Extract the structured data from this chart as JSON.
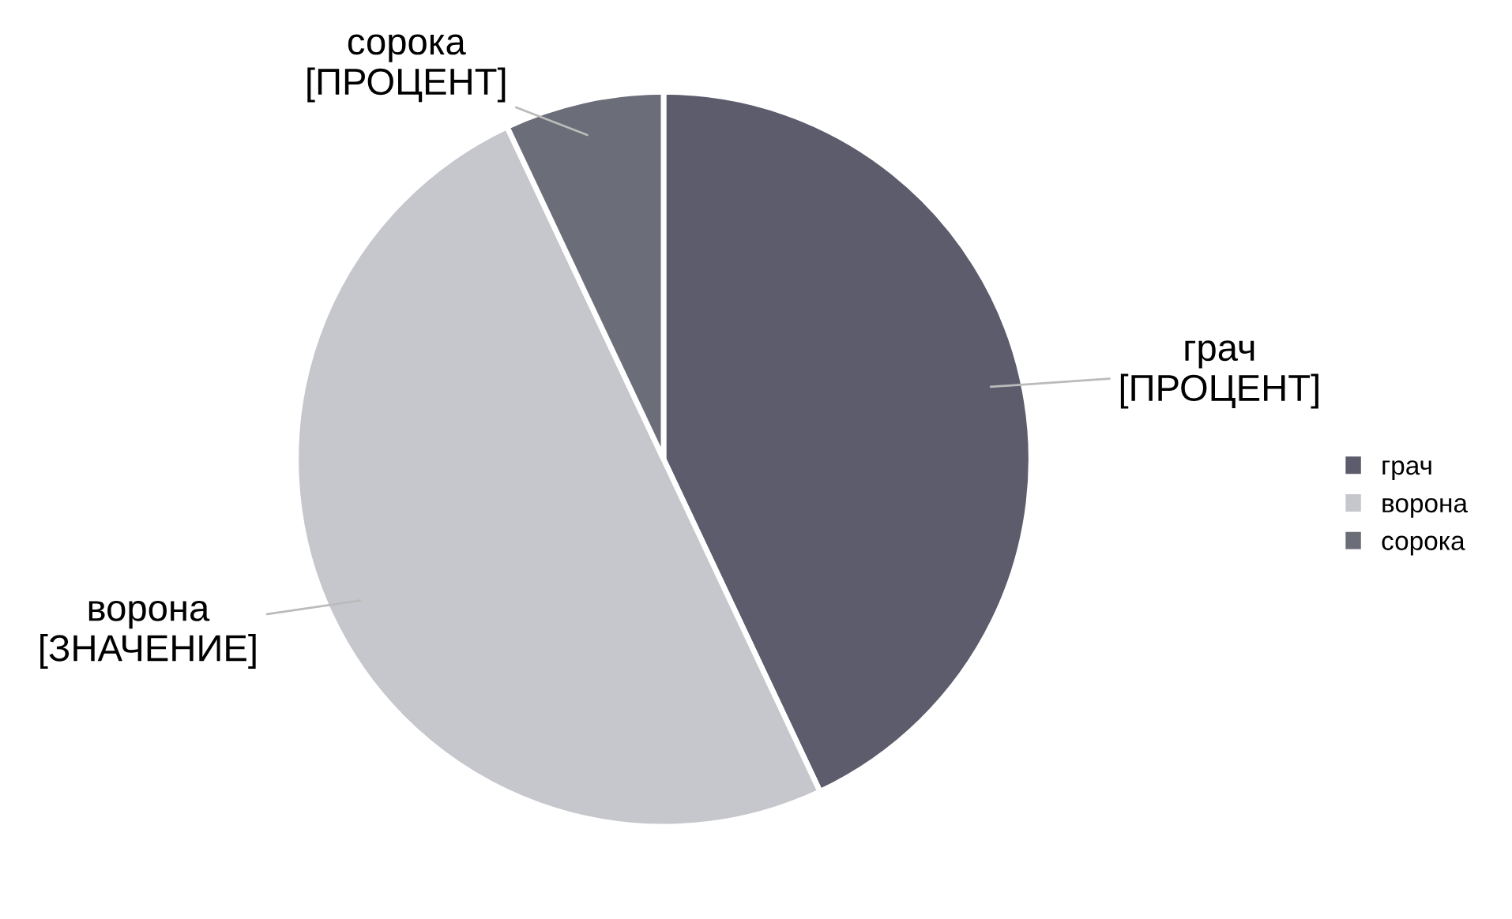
{
  "chart_data": {
    "type": "pie",
    "categories": [
      "грач",
      "ворона",
      "сорока"
    ],
    "values": [
      43,
      50,
      7
    ],
    "colors": [
      "#5c5c6c",
      "#c5c7cd",
      "#6b6d78"
    ],
    "value_labels": [
      "[ПРОЦЕНТ]",
      "[ЗНАЧЕНИЕ]",
      "[ПРОЦЕНТ]"
    ],
    "legend": "right"
  }
}
